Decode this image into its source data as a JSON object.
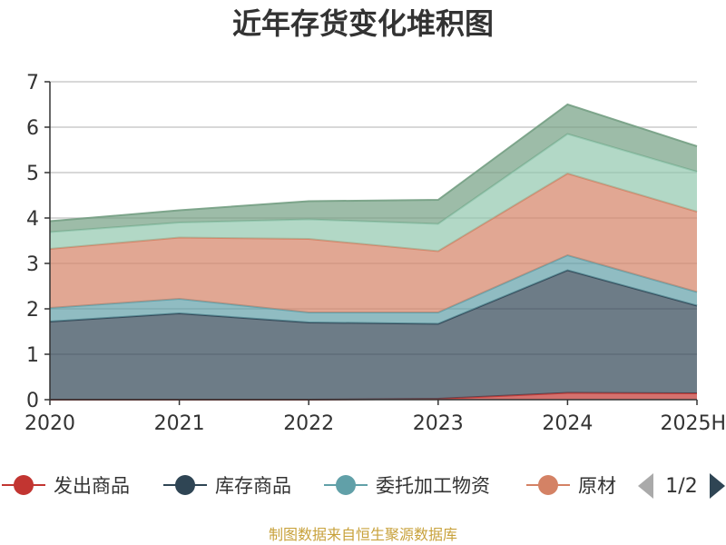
{
  "chart_data": {
    "type": "area",
    "stacked": true,
    "title": "近年存货变化堆积图",
    "ylabel": "",
    "x": [
      "2020",
      "2021",
      "2022",
      "2023",
      "2024",
      "2025H"
    ],
    "ylim": [
      0,
      7
    ],
    "yticks": [
      0,
      1,
      2,
      3,
      4,
      5,
      6,
      7
    ],
    "grid": true,
    "legend_position": "bottom",
    "series": [
      {
        "name": "发出商品",
        "color": "#c23531",
        "values": [
          0,
          0,
          0,
          0.02,
          0.15,
          0.14
        ]
      },
      {
        "name": "库存商品",
        "color": "#2f4554",
        "values": [
          1.72,
          1.9,
          1.7,
          1.65,
          2.7,
          1.93
        ]
      },
      {
        "name": "委托加工物资",
        "color": "#61a0a8",
        "values": [
          0.3,
          0.32,
          0.22,
          0.25,
          0.33,
          0.3
        ]
      },
      {
        "name": "原材料",
        "color": "#d48265",
        "values": [
          1.3,
          1.35,
          1.62,
          1.35,
          1.8,
          1.77
        ]
      },
      {
        "name": "",
        "color": "#91c7ae",
        "values": [
          0.37,
          0.33,
          0.43,
          0.6,
          0.87,
          0.88
        ]
      },
      {
        "name": "",
        "color": "#749f83",
        "values": [
          0.24,
          0.27,
          0.4,
          0.53,
          0.65,
          0.56
        ]
      }
    ]
  },
  "legend": {
    "visible_items": [
      {
        "label": "发出商品",
        "color": "#c23531"
      },
      {
        "label": "库存商品",
        "color": "#2f4554"
      },
      {
        "label": "委托加工物资",
        "color": "#61a0a8"
      },
      {
        "label": "原材",
        "color": "#d48265"
      }
    ],
    "page_indicator": "1/2"
  },
  "source_note": "制图数据来自恒生聚源数据库"
}
